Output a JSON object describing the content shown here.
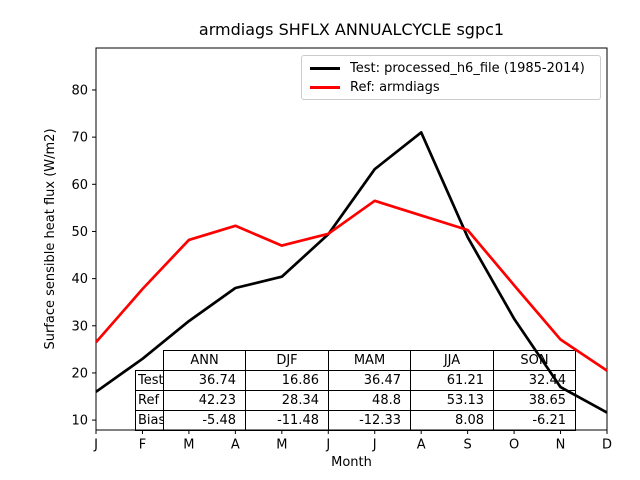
{
  "title": "armdiags SHFLX ANNUALCYCLE sgpc1",
  "colors": {
    "test_line": "#000000",
    "ref_line": "#ff0000",
    "legend_border": "#cccccc",
    "axes": "#000000"
  },
  "chart_data": {
    "type": "line",
    "title": "armdiags SHFLX ANNUALCYCLE sgpc1",
    "xlabel": "Month",
    "ylabel": "Surface sensible heat flux (W/m2)",
    "x_categories": [
      "J",
      "F",
      "M",
      "A",
      "M",
      "J",
      "J",
      "A",
      "S",
      "O",
      "N",
      "D"
    ],
    "yticks": [
      10,
      20,
      30,
      40,
      50,
      60,
      70,
      80
    ],
    "ylim": [
      7.9,
      88.9
    ],
    "grid": false,
    "legend_position": "upper right inside",
    "series": [
      {
        "name": "Test: processed_h6_file (1985-2014)",
        "color": "#000000",
        "values": [
          16.0,
          23.0,
          31.0,
          38.0,
          40.4,
          49.4,
          63.2,
          71.0,
          48.8,
          31.5,
          17.0,
          11.6
        ]
      },
      {
        "name": "Ref: armdiags",
        "color": "#ff0000",
        "values": [
          26.5,
          37.8,
          48.2,
          51.2,
          47.0,
          49.5,
          56.5,
          53.4,
          50.3,
          38.6,
          27.1,
          20.5
        ]
      }
    ],
    "stats_table": {
      "col_headers": [
        "ANN",
        "DJF",
        "MAM",
        "JJA",
        "SON"
      ],
      "rows": [
        {
          "label": "Test",
          "values": [
            "36.74",
            "16.86",
            "36.47",
            "61.21",
            "32.44"
          ]
        },
        {
          "label": "Ref",
          "values": [
            "42.23",
            "28.34",
            "48.8",
            "53.13",
            "38.65"
          ]
        },
        {
          "label": "Bias",
          "values": [
            "-5.48",
            "-11.48",
            "-12.33",
            "8.08",
            "-6.21"
          ]
        }
      ]
    }
  }
}
